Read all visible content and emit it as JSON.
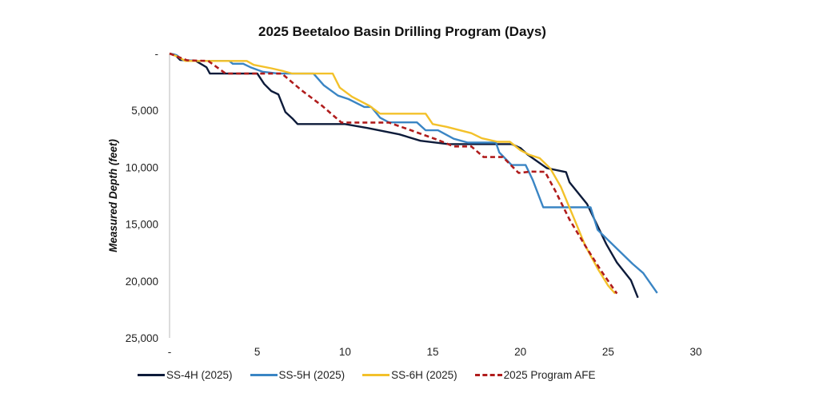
{
  "chart_data": {
    "type": "line",
    "title": "2025 Beetaloo Basin Drilling Program (Days)",
    "xlabel": "",
    "ylabel": "Measured Depth (feet)",
    "xlim": [
      0,
      30
    ],
    "ylim": [
      0,
      25000
    ],
    "y_inverted": true,
    "grid": false,
    "legend_position": "bottom",
    "x_ticks": [
      0,
      5,
      10,
      15,
      20,
      25,
      30
    ],
    "x_tick_labels": [
      "-",
      "5",
      "10",
      "15",
      "20",
      "25",
      "30"
    ],
    "y_ticks": [
      0,
      5000,
      10000,
      15000,
      20000,
      25000
    ],
    "y_tick_labels": [
      "-",
      "5,000",
      "10,000",
      "15,000",
      "20,000",
      "25,000"
    ],
    "series": [
      {
        "name": "SS-4H (2025)",
        "color": "#0d1b3a",
        "style": "solid",
        "points": [
          [
            0,
            0
          ],
          [
            0.3,
            100
          ],
          [
            0.6,
            560
          ],
          [
            1.5,
            650
          ],
          [
            2.1,
            1200
          ],
          [
            2.3,
            1760
          ],
          [
            2.9,
            1760
          ],
          [
            5.0,
            1760
          ],
          [
            5.4,
            2680
          ],
          [
            5.8,
            3300
          ],
          [
            6.2,
            3590
          ],
          [
            6.6,
            5140
          ],
          [
            7.0,
            5700
          ],
          [
            7.3,
            6200
          ],
          [
            10.0,
            6200
          ],
          [
            11.3,
            6550
          ],
          [
            13.1,
            7110
          ],
          [
            14.3,
            7670
          ],
          [
            15.9,
            7960
          ],
          [
            19.5,
            7960
          ],
          [
            20.0,
            8310
          ],
          [
            20.4,
            8870
          ],
          [
            21.5,
            10070
          ],
          [
            22.6,
            10420
          ],
          [
            22.8,
            11330
          ],
          [
            23.8,
            13230
          ],
          [
            24.9,
            16760
          ],
          [
            25.5,
            18370
          ],
          [
            26.3,
            19920
          ],
          [
            26.7,
            21470
          ]
        ]
      },
      {
        "name": "SS-5H (2025)",
        "color": "#3a85c4",
        "style": "solid",
        "points": [
          [
            0,
            0
          ],
          [
            0.4,
            150
          ],
          [
            0.8,
            600
          ],
          [
            1.6,
            650
          ],
          [
            3.4,
            650
          ],
          [
            3.6,
            900
          ],
          [
            4.2,
            900
          ],
          [
            4.6,
            1200
          ],
          [
            5.3,
            1600
          ],
          [
            6.2,
            1760
          ],
          [
            7.0,
            1760
          ],
          [
            8.2,
            1760
          ],
          [
            8.8,
            2800
          ],
          [
            9.6,
            3700
          ],
          [
            10.2,
            4000
          ],
          [
            11.1,
            4700
          ],
          [
            11.5,
            4700
          ],
          [
            12.0,
            5640
          ],
          [
            12.5,
            6050
          ],
          [
            14.1,
            6050
          ],
          [
            14.6,
            6750
          ],
          [
            15.3,
            6750
          ],
          [
            16.2,
            7490
          ],
          [
            17.0,
            7830
          ],
          [
            18.6,
            7830
          ],
          [
            18.8,
            8700
          ],
          [
            19.5,
            9800
          ],
          [
            20.3,
            9800
          ],
          [
            20.7,
            11100
          ],
          [
            21.3,
            13520
          ],
          [
            24.0,
            13520
          ],
          [
            24.4,
            15500
          ],
          [
            25.6,
            17300
          ],
          [
            26.4,
            18500
          ],
          [
            27.0,
            19300
          ],
          [
            27.8,
            21050
          ]
        ]
      },
      {
        "name": "SS-6H (2025)",
        "color": "#f3c12a",
        "style": "solid",
        "points": [
          [
            0,
            0
          ],
          [
            0.5,
            300
          ],
          [
            0.9,
            650
          ],
          [
            2.2,
            650
          ],
          [
            4.4,
            650
          ],
          [
            4.8,
            1000
          ],
          [
            5.8,
            1300
          ],
          [
            6.5,
            1550
          ],
          [
            7.0,
            1760
          ],
          [
            9.3,
            1760
          ],
          [
            9.7,
            3000
          ],
          [
            10.4,
            3800
          ],
          [
            11.4,
            4600
          ],
          [
            12.0,
            5290
          ],
          [
            14.6,
            5290
          ],
          [
            15.0,
            6200
          ],
          [
            15.8,
            6450
          ],
          [
            17.2,
            7000
          ],
          [
            17.8,
            7450
          ],
          [
            18.7,
            7760
          ],
          [
            19.4,
            7760
          ],
          [
            20.0,
            8500
          ],
          [
            20.5,
            8900
          ],
          [
            21.1,
            9200
          ],
          [
            21.7,
            10100
          ],
          [
            22.3,
            11700
          ],
          [
            23.0,
            14300
          ],
          [
            23.7,
            16900
          ],
          [
            24.4,
            18900
          ],
          [
            25.0,
            20400
          ],
          [
            25.4,
            21100
          ]
        ]
      },
      {
        "name": "2025 Program AFE",
        "color": "#b01c1c",
        "style": "dashed",
        "points": [
          [
            0,
            0
          ],
          [
            0.5,
            300
          ],
          [
            1.0,
            600
          ],
          [
            2.2,
            650
          ],
          [
            3.2,
            1760
          ],
          [
            6.4,
            1760
          ],
          [
            7.5,
            3200
          ],
          [
            8.7,
            4600
          ],
          [
            9.8,
            6070
          ],
          [
            12.5,
            6070
          ],
          [
            13.8,
            6770
          ],
          [
            15.3,
            7600
          ],
          [
            16.2,
            8170
          ],
          [
            17.2,
            8170
          ],
          [
            17.9,
            9100
          ],
          [
            19.0,
            9100
          ],
          [
            19.9,
            10500
          ],
          [
            20.6,
            10380
          ],
          [
            21.4,
            10400
          ],
          [
            22.0,
            12100
          ],
          [
            22.8,
            14600
          ],
          [
            23.7,
            16900
          ],
          [
            24.6,
            19100
          ],
          [
            25.5,
            21100
          ]
        ]
      }
    ]
  },
  "legend": {
    "items": [
      {
        "label": "SS-4H (2025)",
        "color": "#0d1b3a",
        "style": "solid"
      },
      {
        "label": "SS-5H (2025)",
        "color": "#3a85c4",
        "style": "solid"
      },
      {
        "label": "SS-6H (2025)",
        "color": "#f3c12a",
        "style": "solid"
      },
      {
        "label": "2025 Program AFE",
        "color": "#b01c1c",
        "style": "dashed"
      }
    ]
  }
}
